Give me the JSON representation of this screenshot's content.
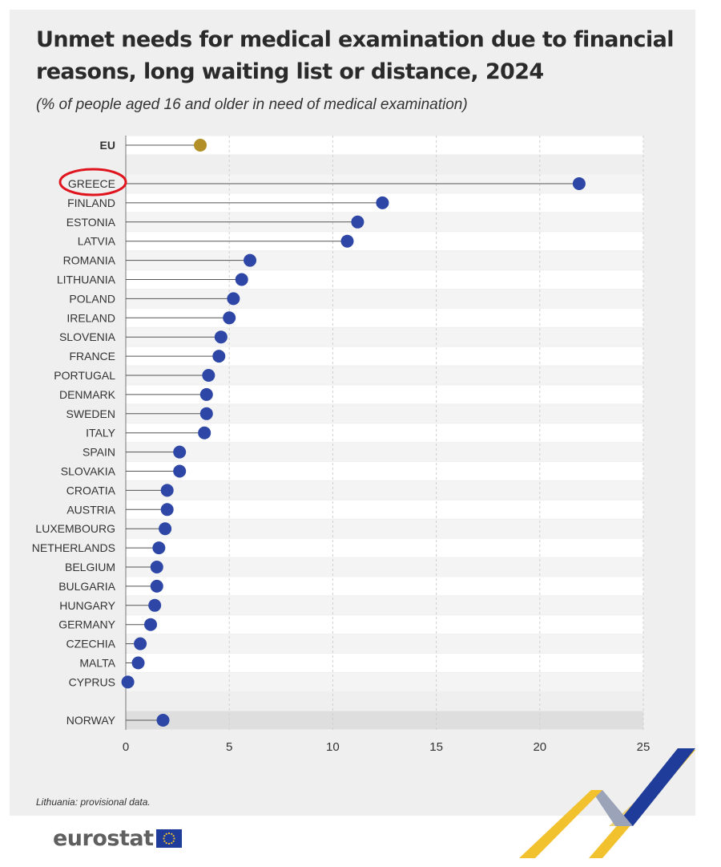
{
  "title": "Unmet needs for medical examination due to financial reasons, long waiting list or distance, 2024",
  "subtitle": "(% of people aged 16 and older in need of medical examination)",
  "footnote": "Lithuania: provisional data.",
  "logo_text": "eurostat",
  "colors": {
    "eu": "#b38f27",
    "country": "#2e47a7",
    "highlight_ring": "#e0141e",
    "brand_blue": "#1f3c9a",
    "brand_yellow": "#f2c12e"
  },
  "chart_data": {
    "type": "dot",
    "xlabel": "",
    "ylabel": "",
    "xlim": [
      0,
      25
    ],
    "xticks": [
      0,
      5,
      10,
      15,
      20,
      25
    ],
    "grid": true,
    "highlighted_category": "GREECE",
    "categories": [
      "EU",
      "GREECE",
      "FINLAND",
      "ESTONIA",
      "LATVIA",
      "ROMANIA",
      "LITHUANIA",
      "POLAND",
      "IRELAND",
      "SLOVENIA",
      "FRANCE",
      "PORTUGAL",
      "DENMARK",
      "SWEDEN",
      "ITALY",
      "SPAIN",
      "SLOVAKIA",
      "CROATIA",
      "AUSTRIA",
      "LUXEMBOURG",
      "NETHERLANDS",
      "BELGIUM",
      "BULGARIA",
      "HUNGARY",
      "GERMANY",
      "CZECHIA",
      "MALTA",
      "CYPRUS",
      "NORWAY"
    ],
    "values": [
      3.6,
      21.9,
      12.4,
      11.2,
      10.7,
      6.0,
      5.6,
      5.2,
      5.0,
      4.6,
      4.5,
      4.0,
      3.9,
      3.9,
      3.8,
      2.6,
      2.6,
      2.0,
      2.0,
      1.9,
      1.6,
      1.5,
      1.5,
      1.4,
      1.2,
      0.7,
      0.6,
      0.1,
      1.8
    ]
  }
}
